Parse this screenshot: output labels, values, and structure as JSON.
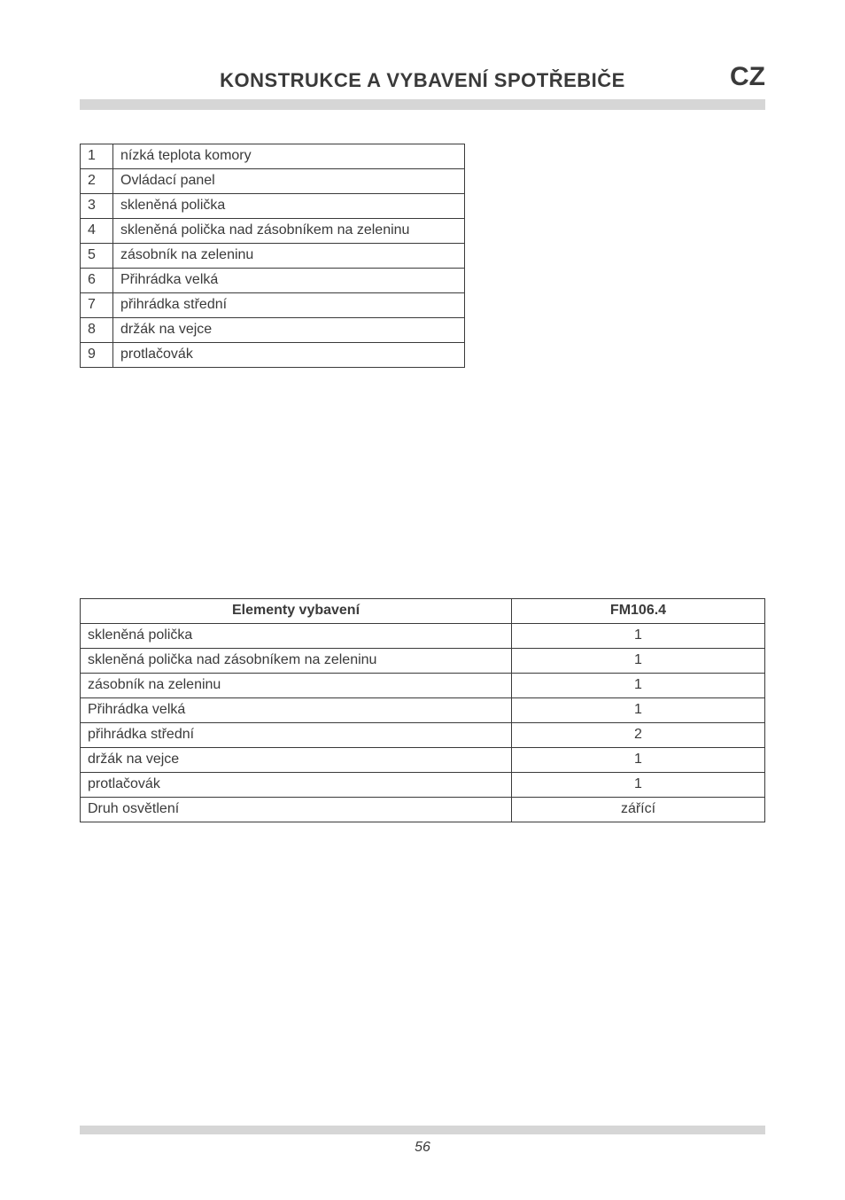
{
  "header": {
    "title": "KONSTRUKCE A VYBAVENÍ SPOTŘEBIČE",
    "lang": "CZ"
  },
  "small_table": {
    "rows": [
      {
        "n": "1",
        "label": "nízká teplota komory"
      },
      {
        "n": "2",
        "label": "Ovládací panel"
      },
      {
        "n": "3",
        "label": "skleněná polička"
      },
      {
        "n": "4",
        "label": "skleněná polička nad zásobníkem na zeleninu"
      },
      {
        "n": "5",
        "label": "zásobník na zeleninu"
      },
      {
        "n": "6",
        "label": "Přihrádka velká"
      },
      {
        "n": "7",
        "label": "přihrádka střední"
      },
      {
        "n": "8",
        "label": "držák na vejce"
      },
      {
        "n": "9",
        "label": "protlačovák"
      }
    ]
  },
  "wide_table": {
    "headers": {
      "c1": "Elementy vybavení",
      "c2": "FM106.4"
    },
    "rows": [
      {
        "c1": "skleněná polička",
        "c2": "1"
      },
      {
        "c1": "skleněná polička nad zásobníkem na zeleninu",
        "c2": "1"
      },
      {
        "c1": "zásobník na zeleninu",
        "c2": "1"
      },
      {
        "c1": "Přihrádka velká",
        "c2": "1"
      },
      {
        "c1": "přihrádka střední",
        "c2": "2"
      },
      {
        "c1": "držák na vejce",
        "c2": "1"
      },
      {
        "c1": "protlačovák",
        "c2": "1"
      },
      {
        "c1": "Druh osvětlení",
        "c2": "zářící"
      }
    ]
  },
  "footer": {
    "page_number": "56"
  }
}
